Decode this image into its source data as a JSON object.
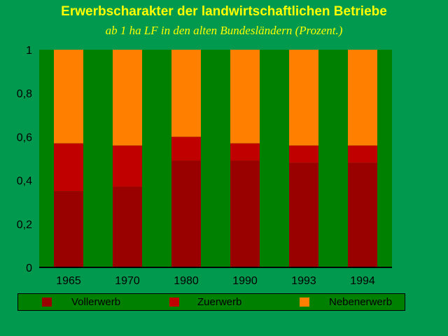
{
  "header": {
    "title": "Erwerbscharakter der landwirtschaftlichen Betriebe",
    "subtitle": "ab 1 ha LF in den alten Bundesländern (Prozent.)"
  },
  "colors": {
    "background": "#00994d",
    "plot_area": "#008000",
    "title": "#ffff00"
  },
  "chart_data": {
    "type": "bar",
    "stacked": true,
    "title": "Erwerbscharakter der landwirtschaftlichen Betriebe",
    "subtitle": "ab 1 ha LF in den alten Bundesländern (Prozent.)",
    "categories": [
      "1965",
      "1970",
      "1980",
      "1990",
      "1993",
      "1994"
    ],
    "series": [
      {
        "name": "Vollerwerb",
        "color": "#990000",
        "values": [
          0.35,
          0.37,
          0.49,
          0.49,
          0.48,
          0.48
        ]
      },
      {
        "name": "Zuerwerb",
        "color": "#c00000",
        "values": [
          0.22,
          0.19,
          0.11,
          0.08,
          0.08,
          0.08
        ]
      },
      {
        "name": "Nebenerwerb",
        "color": "#ff7f00",
        "values": [
          0.43,
          0.44,
          0.4,
          0.43,
          0.44,
          0.44
        ]
      }
    ],
    "yticks": [
      "0",
      "0,2",
      "0,4",
      "0,6",
      "0,8",
      "1"
    ],
    "ylim": [
      0,
      1
    ],
    "xlabel": "",
    "ylabel": "",
    "grid": false,
    "legend_position": "bottom"
  }
}
